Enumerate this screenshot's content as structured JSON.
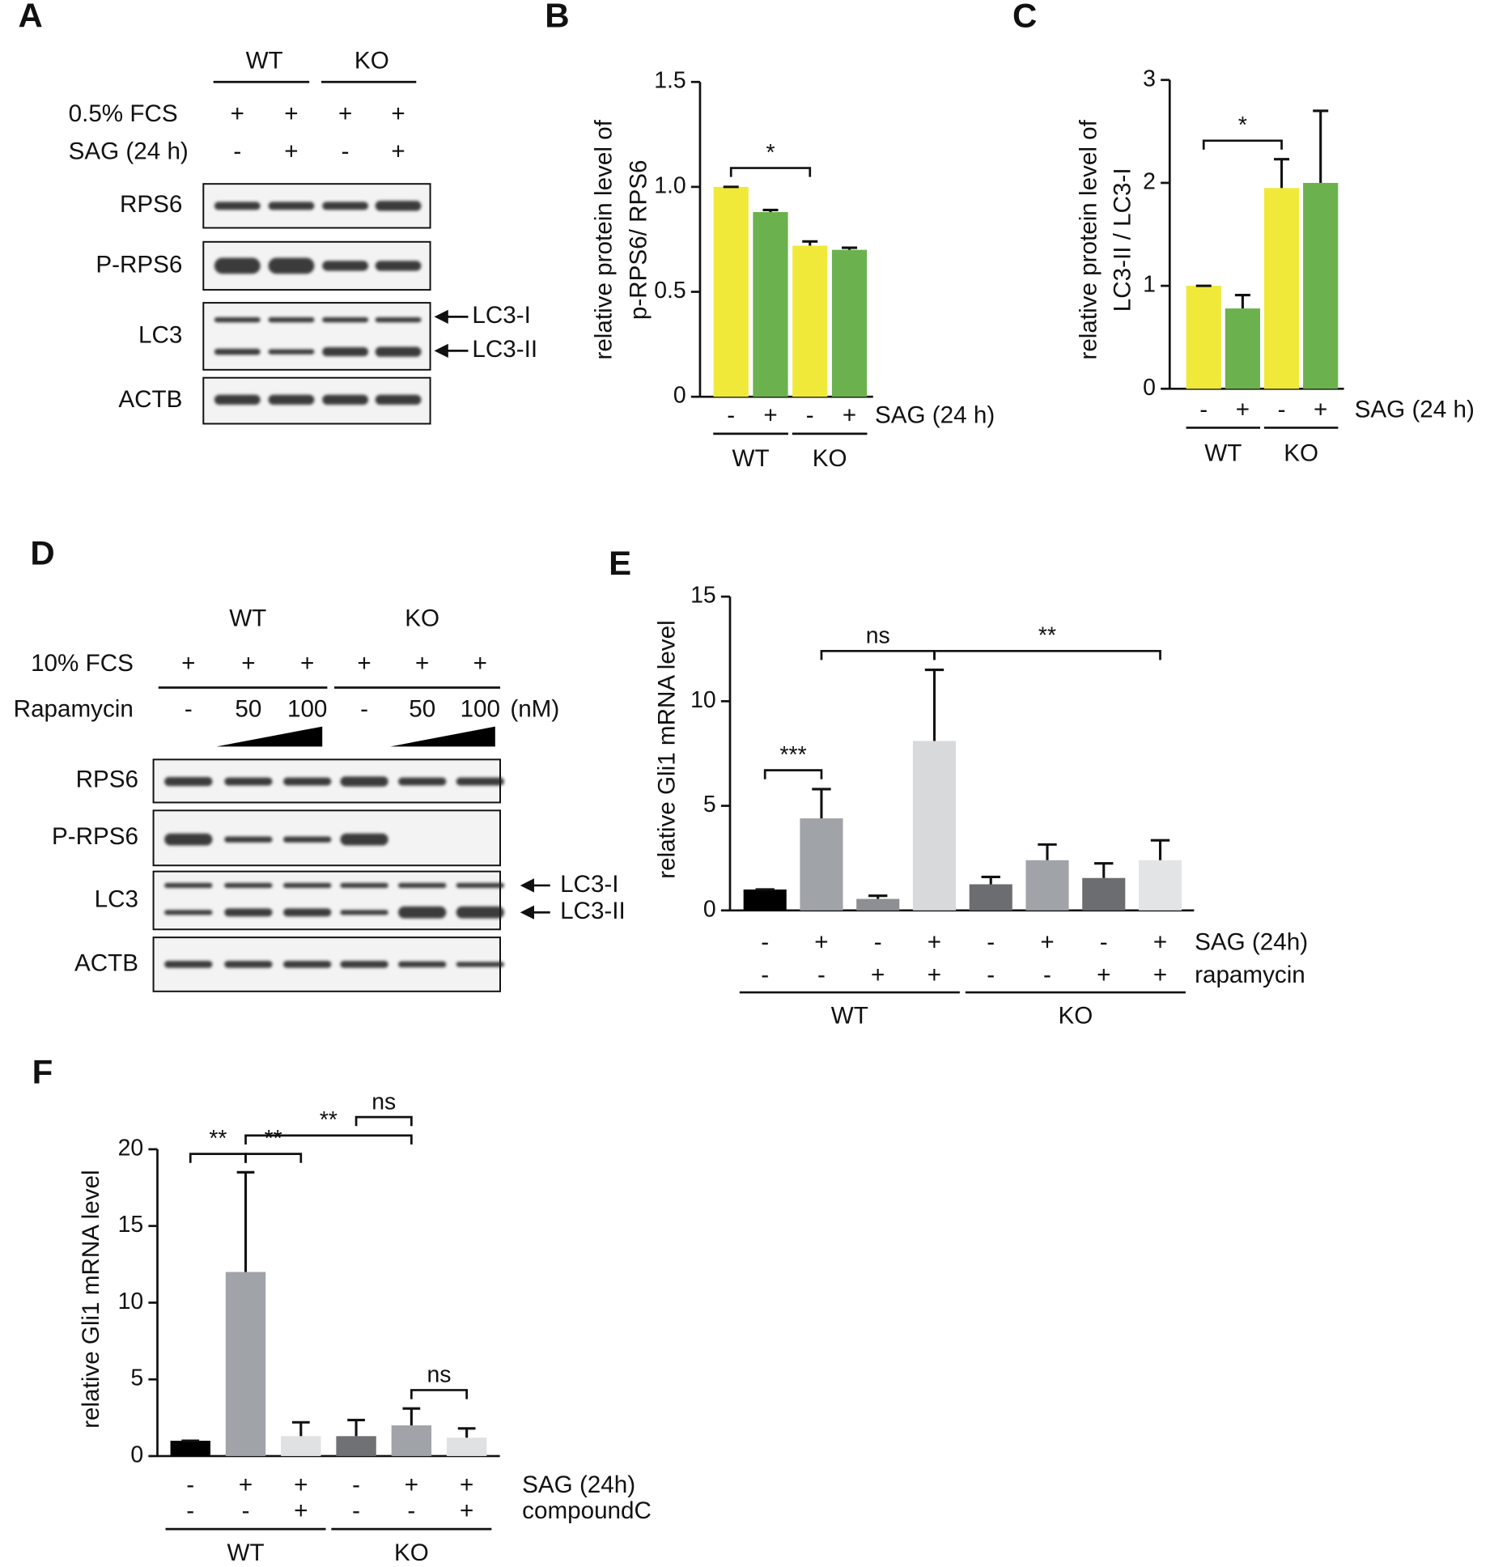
{
  "blots": [
    {
      "panel": "A",
      "groups": [
        "WT",
        "KO"
      ],
      "rows": [
        {
          "label": "0.5% FCS",
          "values": [
            "+",
            "+",
            "+",
            "+"
          ]
        },
        {
          "label": "SAG (24 h)",
          "values": [
            "-",
            "+",
            "-",
            "+"
          ]
        }
      ],
      "bands": [
        "RPS6",
        "P-RPS6",
        "LC3",
        "ACTB"
      ],
      "arrows": [
        "LC3-I",
        "LC3-II"
      ]
    },
    {
      "panel": "D",
      "groups": [
        "WT",
        "KO"
      ],
      "rows": [
        {
          "label": "10% FCS",
          "values": [
            "+",
            "+",
            "+",
            "+",
            "+",
            "+"
          ]
        },
        {
          "label": "Rapamycin",
          "values": [
            "-",
            50,
            100,
            "-",
            50,
            100
          ],
          "unit": "(nM)"
        }
      ],
      "bands": [
        "RPS6",
        "P-RPS6",
        "LC3",
        "ACTB"
      ],
      "arrows": [
        "LC3-I",
        "LC3-II"
      ]
    }
  ],
  "chart_data": [
    {
      "type": "bar",
      "panel": "B",
      "ylabel": [
        "relative protein level of",
        "p-RPS6/ RPS6"
      ],
      "ylim": [
        0,
        1.5
      ],
      "yticks": [
        0,
        0.5,
        {
          "value": 1,
          "label": "1.0"
        },
        1.5
      ],
      "values": [
        1.0,
        0.88,
        0.72,
        0.7
      ],
      "errors": [
        0,
        0.01,
        0.02,
        0.01
      ],
      "colors": [
        "#f0e93a",
        "#6bb24f",
        "#f0e93a",
        "#6bb24f"
      ],
      "rows": [
        {
          "label": "SAG (24 h)",
          "values": [
            "-",
            "+",
            "-",
            "+"
          ]
        }
      ],
      "groups": [
        "WT",
        "KO"
      ],
      "significance": [
        {
          "text": "*",
          "between": [
            0,
            2
          ]
        }
      ]
    },
    {
      "type": "bar",
      "panel": "C",
      "ylabel": [
        "relative protein level of",
        "LC3-II / LC3-I"
      ],
      "ylim": [
        0,
        3
      ],
      "yticks": [
        0,
        1,
        2,
        3
      ],
      "values": [
        1.0,
        0.78,
        1.95,
        2.0
      ],
      "errors": [
        0,
        0.13,
        0.28,
        0.7
      ],
      "colors": [
        "#f0e93a",
        "#6bb24f",
        "#f0e93a",
        "#6bb24f"
      ],
      "rows": [
        {
          "label": "SAG (24 h)",
          "values": [
            "-",
            "+",
            "-",
            "+"
          ]
        }
      ],
      "groups": [
        "WT",
        "KO"
      ],
      "significance": [
        {
          "text": "*",
          "between": [
            0,
            2
          ]
        }
      ]
    },
    {
      "type": "bar",
      "panel": "E",
      "ylabel": "relative Gli1 mRNA level",
      "ylim": [
        0,
        15
      ],
      "yticks": [
        0,
        5,
        10,
        15
      ],
      "values": [
        1.0,
        4.4,
        0.55,
        8.1,
        1.25,
        2.4,
        1.55,
        2.4
      ],
      "errors": [
        0,
        1.4,
        0.15,
        3.4,
        0.35,
        0.75,
        0.7,
        0.95
      ],
      "colors": [
        "#000000",
        "#a0a3a8",
        "#8d8f93",
        "#d8d9da",
        "#6c6d70",
        "#a0a3a8",
        "#6c6d70",
        "#e3e4e5"
      ],
      "rows": [
        {
          "label": "SAG (24h)",
          "values": [
            "-",
            "+",
            "-",
            "+",
            "-",
            "+",
            "-",
            "+"
          ]
        },
        {
          "label": "rapamycin",
          "values": [
            "-",
            "-",
            "+",
            "+",
            "-",
            "-",
            "+",
            "+"
          ]
        }
      ],
      "groups": [
        "WT",
        "KO"
      ],
      "significance": [
        {
          "text": "***",
          "between": [
            0,
            1
          ]
        },
        {
          "text": "ns",
          "between": [
            1,
            3
          ]
        },
        {
          "text": "**",
          "between": [
            3,
            7
          ]
        }
      ]
    },
    {
      "type": "bar",
      "panel": "F",
      "ylabel": "relative Gli1 mRNA level",
      "ylim": [
        0,
        20
      ],
      "yticks": [
        0,
        5,
        10,
        15,
        20
      ],
      "values": [
        1.0,
        12.0,
        1.3,
        1.3,
        2.0,
        1.2
      ],
      "errors": [
        0,
        6.5,
        0.9,
        1.05,
        1.1,
        0.6
      ],
      "colors": [
        "#000000",
        "#a0a3a8",
        "#e0e1e2",
        "#707174",
        "#a0a3a8",
        "#e0e1e2"
      ],
      "rows": [
        {
          "label": "SAG (24h)",
          "values": [
            "-",
            "+",
            "+",
            "-",
            "+",
            "+"
          ]
        },
        {
          "label": "compoundC",
          "values": [
            "-",
            "-",
            "+",
            "-",
            "-",
            "+"
          ]
        }
      ],
      "groups": [
        "WT",
        "KO"
      ],
      "significance": [
        {
          "text": "**",
          "between": [
            0,
            1
          ]
        },
        {
          "text": "**",
          "between": [
            1,
            2
          ]
        },
        {
          "text": "**",
          "between": [
            1,
            4
          ]
        },
        {
          "text": "ns",
          "between": [
            3,
            4
          ]
        },
        {
          "text": "ns",
          "between": [
            4,
            5
          ]
        }
      ]
    }
  ]
}
